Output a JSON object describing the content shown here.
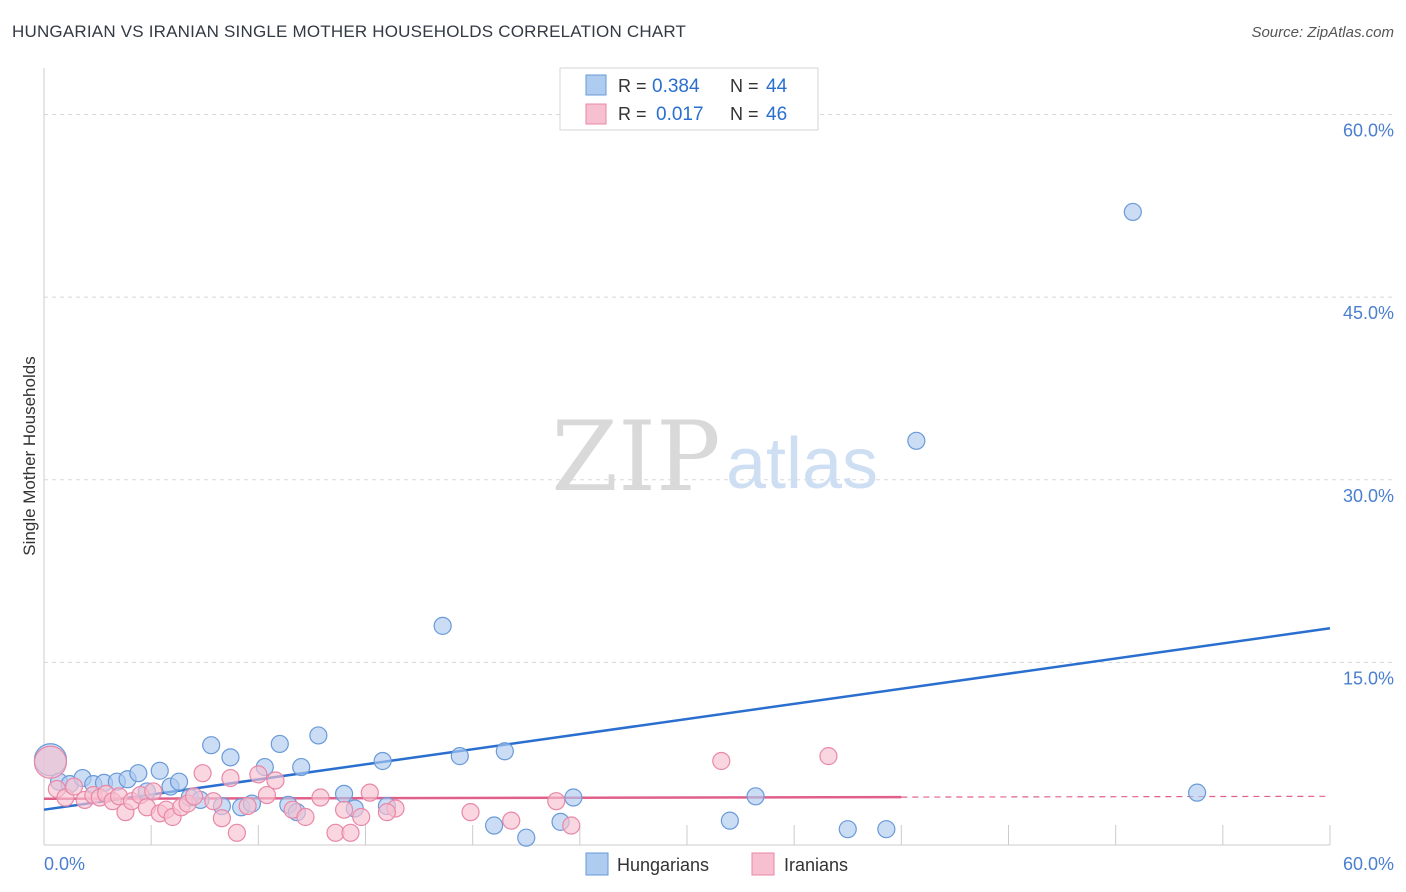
{
  "title": "HUNGARIAN VS IRANIAN SINGLE MOTHER HOUSEHOLDS CORRELATION CHART",
  "source": "Source: ZipAtlas.com",
  "watermark": {
    "zip": "ZIP",
    "atlas": "atlas"
  },
  "colors": {
    "hungarian_fill": "#aecbf0",
    "hungarian_stroke": "#6a9ad8",
    "hungarian_line": "#2a6fcf",
    "iranian_fill": "#f7c0d0",
    "iranian_stroke": "#e888a8",
    "iranian_line": "#e0608a",
    "axis_label": "#4a7fd0",
    "grid": "#d8d8d8"
  },
  "legend": {
    "rows": [
      {
        "r_label": "R =",
        "r_value": "0.384",
        "n_label": "N =",
        "n_value": "44"
      },
      {
        "r_label": "R =",
        "r_value": "0.017",
        "n_label": "N =",
        "n_value": "46"
      }
    ]
  },
  "chart_data": {
    "type": "scatter",
    "title": "HUNGARIAN VS IRANIAN SINGLE MOTHER HOUSEHOLDS CORRELATION CHART",
    "xlabel": "",
    "ylabel": "Single Mother Households",
    "xlim": [
      0,
      60
    ],
    "ylim": [
      0,
      63
    ],
    "x_tick_labels": [
      "0.0%",
      "60.0%"
    ],
    "y_ticks": [
      15,
      30,
      45,
      60
    ],
    "y_tick_labels": [
      "15.0%",
      "30.0%",
      "45.0%",
      "60.0%"
    ],
    "grid": true,
    "series": [
      {
        "name": "Hungarians",
        "r": 0.384,
        "n": 44,
        "trend": {
          "x": [
            0,
            60
          ],
          "y": [
            2.9,
            17.8
          ],
          "dashed_from": null
        },
        "points": [
          [
            0.3,
            7.0,
            "large"
          ],
          [
            0.7,
            5.2
          ],
          [
            1.2,
            5.0
          ],
          [
            1.8,
            5.5
          ],
          [
            2.3,
            5.0
          ],
          [
            2.8,
            5.1
          ],
          [
            3.4,
            5.2
          ],
          [
            3.9,
            5.4
          ],
          [
            4.4,
            5.9
          ],
          [
            4.8,
            4.4
          ],
          [
            5.4,
            6.1
          ],
          [
            5.9,
            4.8
          ],
          [
            6.3,
            5.2
          ],
          [
            6.8,
            3.9
          ],
          [
            7.3,
            3.7
          ],
          [
            7.8,
            8.2
          ],
          [
            8.3,
            3.2
          ],
          [
            8.7,
            7.2
          ],
          [
            9.2,
            3.1
          ],
          [
            9.7,
            3.4
          ],
          [
            10.3,
            6.4
          ],
          [
            11.0,
            8.3
          ],
          [
            11.4,
            3.3
          ],
          [
            11.8,
            2.7
          ],
          [
            12.0,
            6.4
          ],
          [
            12.8,
            9.0
          ],
          [
            14.0,
            4.2
          ],
          [
            14.5,
            3.0
          ],
          [
            15.8,
            6.9
          ],
          [
            16.0,
            3.2
          ],
          [
            18.6,
            18.0
          ],
          [
            19.4,
            7.3
          ],
          [
            21.0,
            1.6
          ],
          [
            21.5,
            7.7
          ],
          [
            22.5,
            0.6
          ],
          [
            24.1,
            1.9
          ],
          [
            24.7,
            3.9
          ],
          [
            32.0,
            2.0
          ],
          [
            33.2,
            4.0
          ],
          [
            37.5,
            1.3
          ],
          [
            39.3,
            1.3
          ],
          [
            40.7,
            33.2
          ],
          [
            50.8,
            52.0
          ],
          [
            53.8,
            4.3
          ]
        ]
      },
      {
        "name": "Iranians",
        "r": 0.017,
        "n": 46,
        "trend": {
          "x": [
            0,
            60
          ],
          "y": [
            3.8,
            4.0
          ],
          "dashed_from": 40
        },
        "points": [
          [
            0.3,
            6.8,
            "large"
          ],
          [
            0.6,
            4.6
          ],
          [
            1.0,
            3.9
          ],
          [
            1.4,
            4.8
          ],
          [
            1.9,
            3.7
          ],
          [
            2.3,
            4.1
          ],
          [
            2.6,
            3.9
          ],
          [
            2.9,
            4.2
          ],
          [
            3.2,
            3.6
          ],
          [
            3.5,
            4.0
          ],
          [
            3.8,
            2.7
          ],
          [
            4.1,
            3.6
          ],
          [
            4.5,
            4.1
          ],
          [
            4.8,
            3.1
          ],
          [
            5.1,
            4.4
          ],
          [
            5.4,
            2.6
          ],
          [
            5.7,
            2.9
          ],
          [
            6.0,
            2.3
          ],
          [
            6.4,
            3.1
          ],
          [
            6.7,
            3.4
          ],
          [
            7.0,
            4.0
          ],
          [
            7.4,
            5.9
          ],
          [
            7.9,
            3.6
          ],
          [
            8.3,
            2.2
          ],
          [
            8.7,
            5.5
          ],
          [
            9.0,
            1.0
          ],
          [
            9.5,
            3.2
          ],
          [
            10.0,
            5.8
          ],
          [
            10.4,
            4.1
          ],
          [
            10.8,
            5.3
          ],
          [
            11.6,
            2.9
          ],
          [
            12.2,
            2.3
          ],
          [
            12.9,
            3.9
          ],
          [
            13.6,
            1.0
          ],
          [
            14.0,
            2.9
          ],
          [
            14.3,
            1.0
          ],
          [
            14.8,
            2.3
          ],
          [
            15.2,
            4.3
          ],
          [
            16.4,
            3.0
          ],
          [
            16.0,
            2.7
          ],
          [
            19.9,
            2.7
          ],
          [
            21.8,
            2.0
          ],
          [
            23.9,
            3.6
          ],
          [
            24.6,
            1.6
          ],
          [
            31.6,
            6.9
          ],
          [
            36.6,
            7.3
          ]
        ]
      }
    ]
  },
  "bottom_legend": {
    "hungarians": "Hungarians",
    "iranians": "Iranians"
  }
}
